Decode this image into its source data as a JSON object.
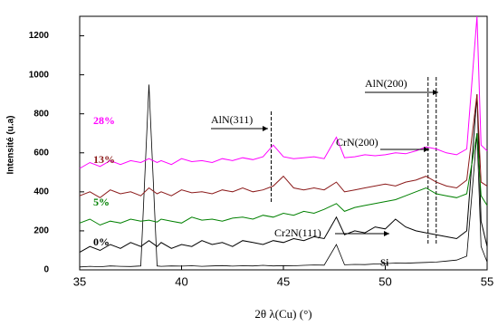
{
  "chart_data": {
    "type": "line",
    "xlabel": "2θ λ(Cu) (°)",
    "ylabel": "Intensité (u.a)",
    "xlim": [
      35,
      55
    ],
    "xticks": [
      35,
      40,
      45,
      50,
      55
    ],
    "ylim": [
      0,
      1300
    ],
    "yticks": [
      0,
      200,
      400,
      600,
      800,
      1000,
      1200
    ],
    "x": [
      35,
      35.5,
      36,
      36.5,
      37,
      37.5,
      38,
      38.4,
      38.8,
      39,
      39.5,
      40,
      40.5,
      41,
      41.5,
      42,
      42.5,
      43,
      43.5,
      44,
      44.5,
      45,
      45.5,
      46,
      46.5,
      47,
      47.6,
      48,
      48.5,
      49,
      49.5,
      50,
      50.5,
      51,
      51.5,
      52,
      52.5,
      53,
      53.5,
      54,
      54.5,
      54.7,
      55
    ],
    "series": [
      {
        "name": "Si",
        "color": "#000000",
        "values": [
          15,
          18,
          16,
          20,
          18,
          17,
          20,
          950,
          20,
          18,
          20,
          19,
          21,
          18,
          20,
          22,
          19,
          21,
          20,
          23,
          20,
          22,
          21,
          23,
          25,
          24,
          130,
          26,
          28,
          27,
          30,
          32,
          35,
          34,
          36,
          38,
          40,
          45,
          50,
          70,
          700,
          120,
          40
        ]
      },
      {
        "name": "0%",
        "color": "#000000",
        "values": [
          90,
          120,
          100,
          130,
          110,
          140,
          120,
          150,
          120,
          140,
          110,
          130,
          120,
          150,
          130,
          140,
          120,
          150,
          140,
          130,
          150,
          140,
          160,
          150,
          170,
          160,
          270,
          180,
          200,
          190,
          220,
          210,
          260,
          220,
          200,
          190,
          180,
          170,
          160,
          200,
          900,
          250,
          120
        ]
      },
      {
        "name": "5%",
        "color": "#008000",
        "values": [
          240,
          260,
          230,
          250,
          240,
          260,
          250,
          255,
          245,
          260,
          250,
          240,
          270,
          255,
          260,
          250,
          265,
          270,
          260,
          280,
          270,
          290,
          280,
          300,
          290,
          310,
          340,
          300,
          320,
          330,
          340,
          350,
          360,
          380,
          400,
          420,
          390,
          380,
          370,
          390,
          700,
          380,
          330
        ]
      },
      {
        "name": "13%",
        "color": "#8b1a1a",
        "values": [
          380,
          400,
          370,
          410,
          390,
          400,
          380,
          420,
          390,
          400,
          380,
          410,
          395,
          400,
          390,
          410,
          400,
          420,
          400,
          410,
          430,
          480,
          420,
          410,
          420,
          410,
          450,
          400,
          410,
          420,
          430,
          440,
          430,
          450,
          460,
          480,
          450,
          430,
          420,
          460,
          900,
          450,
          430
        ]
      },
      {
        "name": "28%",
        "color": "#ff00ff",
        "values": [
          520,
          550,
          530,
          560,
          540,
          560,
          550,
          570,
          550,
          560,
          540,
          570,
          555,
          560,
          550,
          570,
          560,
          575,
          565,
          580,
          640,
          580,
          570,
          575,
          580,
          570,
          680,
          575,
          580,
          590,
          585,
          590,
          600,
          595,
          610,
          630,
          620,
          600,
          590,
          620,
          1300,
          640,
          610
        ]
      }
    ],
    "annotations": [
      "AlN(311)",
      "AlN(200)",
      "CrN(200)",
      "Cr2N(111)",
      "Si"
    ],
    "reference_lines": [
      44.4,
      52.1,
      52.5
    ]
  }
}
